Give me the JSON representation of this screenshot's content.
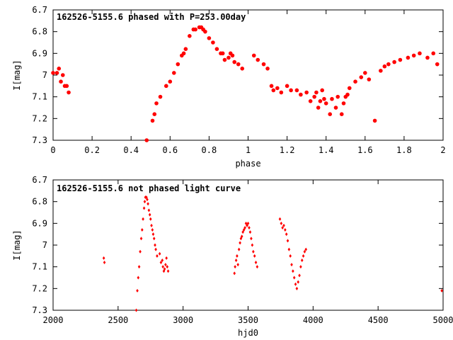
{
  "chart_data": [
    {
      "type": "scatter",
      "title": "162526-5155.6 phased with P=253.00day",
      "xlabel": "phase",
      "ylabel": "I[mag]",
      "xlim": [
        0,
        2
      ],
      "ylim": [
        6.7,
        7.3
      ],
      "y_inverted": true,
      "x_ticks": [
        "0",
        "0.2",
        "0.4",
        "0.6",
        "0.8",
        "1",
        "1.2",
        "1.4",
        "1.6",
        "1.8",
        "2"
      ],
      "y_ticks": [
        "6.7",
        "6.8",
        "6.9",
        "7",
        "7.1",
        "7.2",
        "7.3"
      ],
      "color": "#ff0000",
      "marker": "filled-circle",
      "x": [
        0.0,
        0.03,
        0.05,
        0.06,
        0.08,
        0.48,
        0.51,
        0.52,
        0.53,
        0.55,
        0.58,
        0.6,
        0.62,
        0.64,
        0.66,
        0.67,
        0.68,
        0.7,
        0.72,
        0.73,
        0.75,
        0.76,
        0.77,
        0.78,
        0.8,
        0.82,
        0.84,
        0.86,
        0.87,
        0.88,
        0.9,
        0.91,
        0.92,
        0.93,
        0.95,
        0.97,
        1.03,
        1.05,
        1.08,
        1.1,
        1.12,
        1.13,
        1.15,
        1.17,
        1.2,
        1.22,
        1.25,
        1.27,
        1.3,
        1.32,
        1.34,
        1.35,
        1.37,
        1.38,
        1.4,
        1.42,
        1.43,
        1.45,
        1.46,
        1.48,
        1.5,
        1.52,
        1.55,
        1.58,
        1.6,
        1.62,
        1.65,
        1.68,
        1.7,
        1.72,
        1.75,
        1.78,
        1.82,
        1.85,
        1.88,
        1.92,
        1.95,
        1.97,
        0.02,
        0.04,
        0.07,
        1.49,
        1.51,
        1.36,
        1.39
      ],
      "y": [
        6.99,
        6.97,
        7.0,
        7.05,
        7.08,
        7.3,
        7.21,
        7.18,
        7.13,
        7.1,
        7.05,
        7.03,
        6.99,
        6.95,
        6.91,
        6.9,
        6.88,
        6.82,
        6.79,
        6.79,
        6.78,
        6.78,
        6.79,
        6.8,
        6.83,
        6.85,
        6.88,
        6.9,
        6.9,
        6.93,
        6.92,
        6.9,
        6.91,
        6.94,
        6.95,
        6.97,
        6.91,
        6.93,
        6.95,
        6.97,
        7.05,
        7.07,
        7.06,
        7.08,
        7.05,
        7.07,
        7.07,
        7.09,
        7.08,
        7.12,
        7.1,
        7.08,
        7.12,
        7.07,
        7.13,
        7.18,
        7.11,
        7.15,
        7.1,
        7.18,
        7.1,
        7.06,
        7.03,
        7.01,
        6.99,
        7.02,
        7.21,
        6.98,
        6.96,
        6.95,
        6.94,
        6.93,
        6.92,
        6.91,
        6.9,
        6.92,
        6.9,
        6.95,
        6.99,
        7.03,
        7.05,
        7.13,
        7.09,
        7.15,
        7.11
      ]
    },
    {
      "type": "scatter",
      "title": "162526-5155.6 not phased light curve",
      "xlabel": "hjd0",
      "ylabel": "I[mag]",
      "xlim": [
        2000,
        5000
      ],
      "ylim": [
        6.7,
        7.3
      ],
      "y_inverted": true,
      "x_ticks": [
        "2000",
        "2500",
        "3000",
        "3500",
        "4000",
        "4500",
        "5000"
      ],
      "y_ticks": [
        "6.7",
        "6.8",
        "6.9",
        "7",
        "7.1",
        "7.2",
        "7.3"
      ],
      "color": "#ff0000",
      "marker": "small-diamond",
      "x": [
        2390,
        2395,
        2640,
        2648,
        2655,
        2662,
        2670,
        2678,
        2685,
        2692,
        2700,
        2705,
        2710,
        2718,
        2724,
        2730,
        2737,
        2744,
        2750,
        2757,
        2764,
        2770,
        2777,
        2784,
        2790,
        2800,
        2820,
        2830,
        2840,
        2845,
        2852,
        2858,
        2865,
        2872,
        2878,
        2885,
        3395,
        3400,
        3408,
        3415,
        3422,
        3430,
        3438,
        3445,
        3452,
        3460,
        3468,
        3476,
        3484,
        3492,
        3500,
        3508,
        3516,
        3524,
        3532,
        3540,
        3550,
        3560,
        3570,
        3745,
        3755,
        3765,
        3775,
        3785,
        3795,
        3805,
        3815,
        3825,
        3835,
        3845,
        3855,
        3865,
        3875,
        3885,
        3895,
        3905,
        3915,
        3925,
        3935,
        3945,
        4990
      ],
      "y": [
        7.06,
        7.08,
        7.3,
        7.21,
        7.15,
        7.1,
        7.03,
        6.97,
        6.93,
        6.88,
        6.83,
        6.8,
        6.78,
        6.78,
        6.79,
        6.81,
        6.84,
        6.86,
        6.88,
        6.91,
        6.93,
        6.95,
        6.97,
        7.0,
        7.02,
        7.05,
        7.04,
        7.08,
        7.07,
        7.1,
        7.12,
        7.11,
        7.09,
        7.06,
        7.1,
        7.12,
        7.13,
        7.1,
        7.07,
        7.05,
        7.09,
        7.02,
        6.99,
        6.97,
        6.96,
        6.94,
        6.93,
        6.92,
        6.9,
        6.91,
        6.9,
        6.92,
        6.94,
        6.97,
        7.0,
        7.03,
        7.05,
        7.08,
        7.1,
        6.88,
        6.9,
        6.92,
        6.91,
        6.93,
        6.95,
        6.98,
        7.02,
        7.05,
        7.09,
        7.12,
        7.15,
        7.18,
        7.2,
        7.17,
        7.14,
        7.1,
        7.07,
        7.05,
        7.03,
        7.02,
        7.21
      ]
    }
  ]
}
